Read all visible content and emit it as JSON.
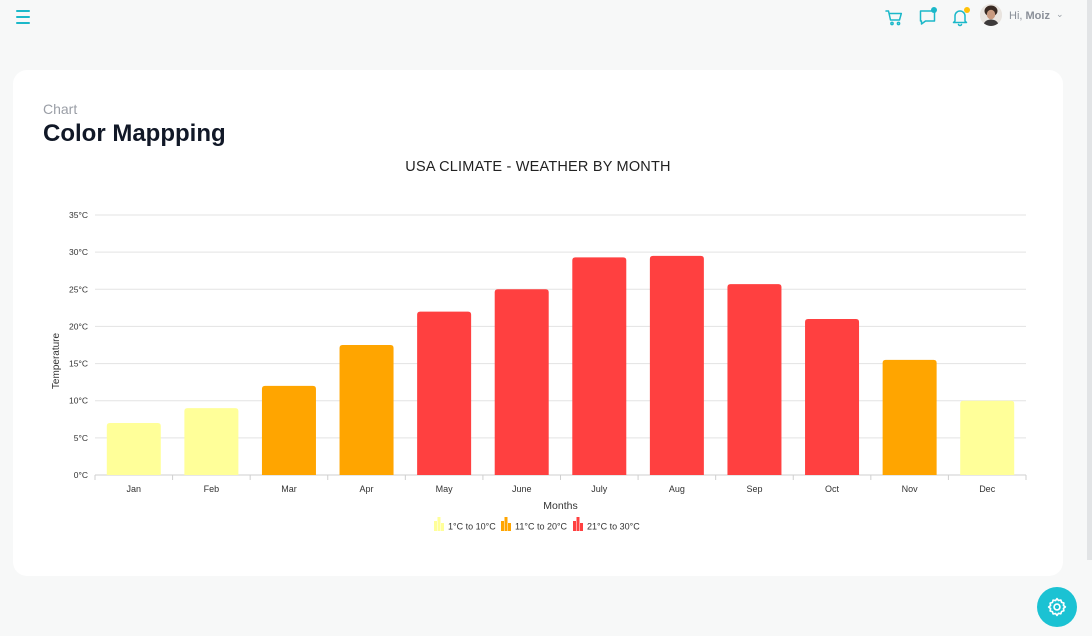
{
  "header": {
    "greeting": "Hi,",
    "user_name": "Moiz",
    "icons": [
      "menu-icon",
      "cart-icon",
      "chat-icon",
      "bell-icon",
      "avatar",
      "chevron-down-icon"
    ]
  },
  "page": {
    "breadcrumb": "Chart",
    "title": "Color Mappping"
  },
  "colors": {
    "accent": "#1bc2d3",
    "low": "#ffff99",
    "mid": "#ffa500",
    "high": "#ff4040"
  },
  "chart_data": {
    "type": "bar",
    "title": "USA CLIMATE - WEATHER BY MONTH",
    "xlabel": "Months",
    "ylabel": "Temperature",
    "categories": [
      "Jan",
      "Feb",
      "Mar",
      "Apr",
      "May",
      "June",
      "July",
      "Aug",
      "Sep",
      "Oct",
      "Nov",
      "Dec"
    ],
    "values": [
      7,
      9,
      12,
      17.5,
      22,
      25,
      29.3,
      29.5,
      25.7,
      21,
      15.5,
      10
    ],
    "ylim": [
      0,
      35
    ],
    "yticks": [
      "0°C",
      "5°C",
      "10°C",
      "15°C",
      "20°C",
      "25°C",
      "30°C",
      "35°C"
    ],
    "grid": true,
    "legend_position": "bottom",
    "color_ranges": [
      {
        "label": "1°C to 10°C",
        "from": 1,
        "to": 10,
        "color": "#ffff99"
      },
      {
        "label": "11°C to 20°C",
        "from": 11,
        "to": 20,
        "color": "#ffa500"
      },
      {
        "label": "21°C to 30°C",
        "from": 21,
        "to": 30,
        "color": "#ff4040"
      }
    ]
  },
  "floating": {
    "settings_icon": "gear-icon"
  }
}
